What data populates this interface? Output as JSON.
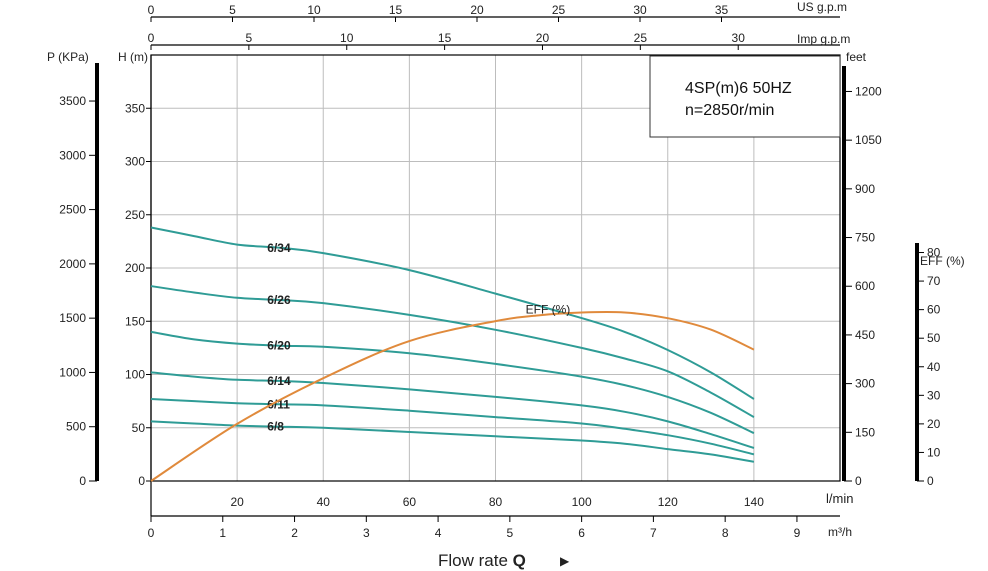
{
  "chart_data": {
    "type": "line",
    "info": {
      "model": "4SP(m)6  50HZ",
      "speed": "n=2850r/min"
    },
    "x_lmin": {
      "unit": "l/min",
      "range": [
        0,
        160
      ],
      "ticks": [
        20,
        40,
        60,
        80,
        100,
        120,
        140
      ]
    },
    "x_m3h": {
      "unit": "m³/h",
      "range": [
        0,
        9.6
      ],
      "ticks": [
        0,
        1,
        2,
        3,
        4,
        5,
        6,
        7,
        8,
        9
      ]
    },
    "x_usgpm": {
      "unit": "US g.p.m",
      "range": [
        0,
        42.27
      ],
      "ticks": [
        0,
        5,
        10,
        15,
        20,
        25,
        30,
        35
      ]
    },
    "x_impgpm": {
      "unit": "Imp g.p.m",
      "range": [
        0,
        35.2
      ],
      "ticks": [
        0,
        5,
        10,
        15,
        20,
        25,
        30
      ]
    },
    "y_head": {
      "unit": "H (m)",
      "range": [
        0,
        400
      ],
      "ticks": [
        0,
        50,
        100,
        150,
        200,
        250,
        300,
        350
      ]
    },
    "y_pressure": {
      "unit": "P (KPa)",
      "ticks": [
        0,
        500,
        1000,
        1500,
        2000,
        2500,
        3000,
        3500
      ]
    },
    "y_feet": {
      "unit": "feet",
      "ticks": [
        0,
        150,
        300,
        450,
        600,
        750,
        900,
        1050,
        1200
      ]
    },
    "y_eff": {
      "unit": "EFF (%)",
      "range": [
        0,
        100
      ],
      "ticks": [
        0,
        10,
        20,
        30,
        40,
        50,
        60,
        70,
        80
      ]
    },
    "series": [
      {
        "name": "6/34",
        "x": [
          0,
          10,
          20,
          30,
          40,
          60,
          80,
          100,
          110,
          120,
          130,
          140
        ],
        "y": [
          238,
          230,
          222,
          219,
          214,
          198,
          176,
          153,
          140,
          123,
          102,
          77
        ]
      },
      {
        "name": "6/26",
        "x": [
          0,
          10,
          20,
          30,
          40,
          60,
          80,
          100,
          110,
          120,
          130,
          140
        ],
        "y": [
          183,
          177,
          172,
          170,
          167,
          156,
          142,
          125,
          115,
          103,
          83,
          60
        ]
      },
      {
        "name": "6/20",
        "x": [
          0,
          10,
          20,
          30,
          40,
          60,
          80,
          100,
          110,
          120,
          130,
          140
        ],
        "y": [
          140,
          133,
          129,
          127,
          126,
          120,
          110,
          98,
          90,
          79,
          64,
          45
        ]
      },
      {
        "name": "6/14",
        "x": [
          0,
          10,
          20,
          30,
          40,
          60,
          80,
          100,
          110,
          120,
          130,
          140
        ],
        "y": [
          102,
          98,
          95,
          94,
          92,
          86,
          79,
          71,
          65,
          56,
          44,
          31
        ]
      },
      {
        "name": "6/11",
        "x": [
          0,
          10,
          20,
          30,
          40,
          60,
          80,
          100,
          110,
          120,
          130,
          140
        ],
        "y": [
          77,
          75,
          73,
          72,
          71,
          66,
          60,
          54,
          49,
          43,
          35,
          25
        ]
      },
      {
        "name": "6/8",
        "x": [
          0,
          10,
          20,
          30,
          40,
          60,
          80,
          100,
          110,
          120,
          130,
          140
        ],
        "y": [
          56,
          54,
          52,
          51,
          50,
          46,
          42,
          38,
          35,
          30,
          25,
          18
        ]
      }
    ],
    "efficiency": {
      "name": "EFF (%)",
      "x": [
        0,
        20,
        40,
        60,
        80,
        90,
        100,
        110,
        120,
        130,
        140
      ],
      "y": [
        0,
        20,
        36,
        49,
        56,
        58,
        59,
        59,
        57,
        53,
        46
      ]
    }
  },
  "labels": {
    "p_unit": "P (KPa)",
    "h_unit": "H (m)",
    "feet_unit": "feet",
    "eff_unit": "EFF (%)",
    "usgpm_unit": "US g.p.m",
    "impgpm_unit": "Imp g.p.m",
    "lmin_unit": "l/min",
    "m3h_unit": "m³/h",
    "flow_title": "Flow rate ",
    "flow_title_bold": "Q",
    "flow_arrow": "▶"
  },
  "colors": {
    "head_curves": "#2f9c96",
    "efficiency_curve": "#e08a3c"
  }
}
